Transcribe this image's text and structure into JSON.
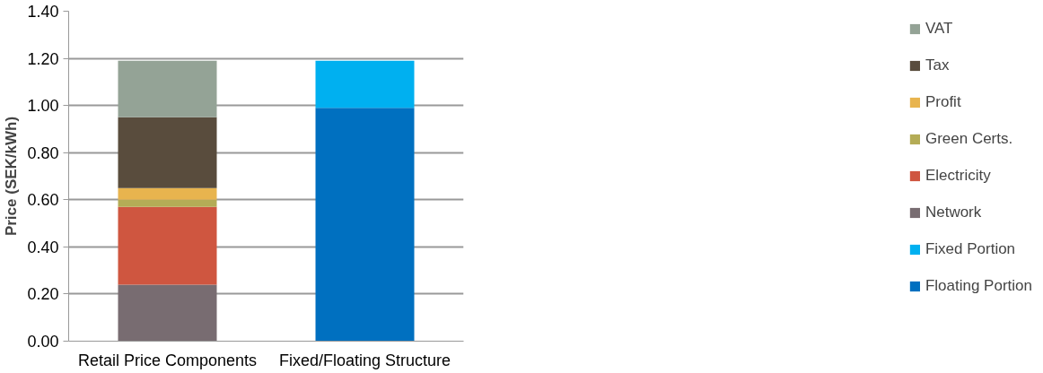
{
  "chart_data": {
    "type": "bar",
    "stacked": true,
    "ylabel": "Price (SEK/kWh)",
    "categories": [
      "Retail Price Components",
      "Fixed/Floating Structure"
    ],
    "series": [
      {
        "name": "Floating Portion",
        "color": "#0070c0",
        "values": [
          null,
          0.99
        ]
      },
      {
        "name": "Fixed Portion",
        "color": "#00b0f0",
        "values": [
          null,
          0.2
        ]
      },
      {
        "name": "Network",
        "color": "#786c71",
        "values": [
          0.24,
          null
        ]
      },
      {
        "name": "Electricity",
        "color": "#cf5640",
        "values": [
          0.33,
          null
        ]
      },
      {
        "name": "Green Certs.",
        "color": "#b4ac56",
        "values": [
          0.03,
          null
        ]
      },
      {
        "name": "Profit",
        "color": "#e8b44e",
        "values": [
          0.05,
          null
        ]
      },
      {
        "name": "Tax",
        "color": "#594c3d",
        "values": [
          0.3,
          null
        ]
      },
      {
        "name": "VAT",
        "color": "#94a396",
        "values": [
          0.24,
          null
        ]
      }
    ],
    "ylim": [
      0,
      1.4
    ],
    "yticks": [
      {
        "value": 0,
        "label": "0.00"
      },
      {
        "value": 0.2,
        "label": "0.20"
      },
      {
        "value": 0.4,
        "label": "0.40"
      },
      {
        "value": 0.6,
        "label": "0.60"
      },
      {
        "value": 0.8,
        "label": "0.80"
      },
      {
        "value": 1.0,
        "label": "1.00"
      },
      {
        "value": 1.2,
        "label": "1.20"
      },
      {
        "value": 1.4,
        "label": "1.40"
      }
    ],
    "grid": "y",
    "legend": "right"
  }
}
